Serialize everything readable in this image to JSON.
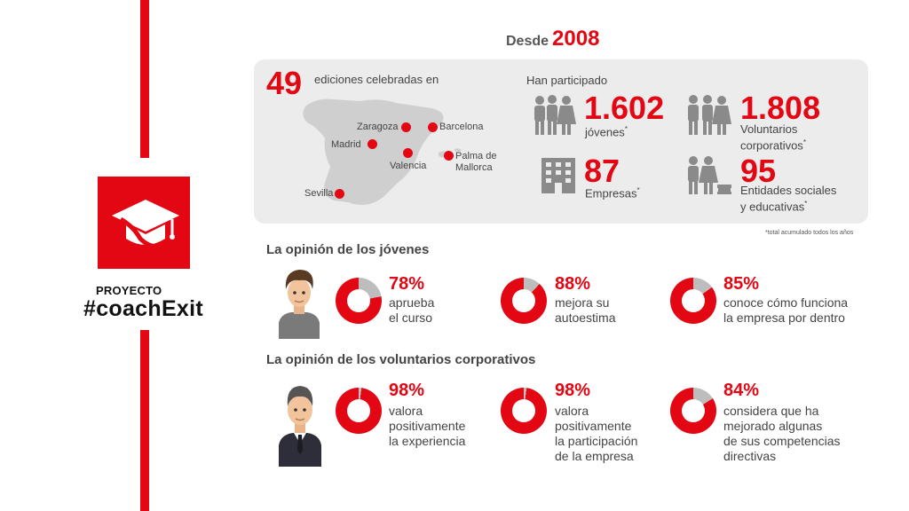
{
  "brand": {
    "small": "PROYECTO",
    "big": "#coachExit",
    "icon": "graduation-cap-icon",
    "accent": "#e30613"
  },
  "header": {
    "prefix": "Desde",
    "year": "2008"
  },
  "editions": {
    "number": "49",
    "text": "ediciones celebradas en"
  },
  "cities": [
    "Zaragoza",
    "Barcelona",
    "Madrid",
    "Valencia",
    "Palma de Mallorca",
    "Sevilla"
  ],
  "participation": {
    "title": "Han participado",
    "young": {
      "number": "1.602",
      "label": "jóvenes",
      "mark": "*"
    },
    "volunteers": {
      "number": "1.808",
      "label1": "Voluntarios",
      "label2": "corporativos",
      "mark": "*"
    },
    "companies": {
      "number": "87",
      "label": "Empresas",
      "mark": "*"
    },
    "entities": {
      "number": "95",
      "label1": "Entidades sociales",
      "label2": "y educativas",
      "mark": "*"
    }
  },
  "footnote": "*total acumulado todos los años",
  "youth_opinion": {
    "title": "La opinión de los jóvenes",
    "items": [
      {
        "percent": "78%",
        "value": 78,
        "text": "aprueba\nel curso"
      },
      {
        "percent": "88%",
        "value": 88,
        "text": "mejora su\nautoestima"
      },
      {
        "percent": "85%",
        "value": 85,
        "text": "conoce cómo funciona\nla empresa por dentro"
      }
    ]
  },
  "volunteer_opinion": {
    "title": "La opinión de los voluntarios corporativos",
    "items": [
      {
        "percent": "98%",
        "value": 98,
        "text": "valora\npositivamente\nla experiencia"
      },
      {
        "percent": "98%",
        "value": 98,
        "text": "valora\npositivamente\nla participación\nde la empresa"
      },
      {
        "percent": "84%",
        "value": 84,
        "text": "considera que ha\nmejorado algunas\nde sus competencias\ndirectivas"
      }
    ]
  },
  "colors": {
    "red": "#e30613",
    "grey": "#bdbdbd",
    "panel": "#ececec"
  }
}
